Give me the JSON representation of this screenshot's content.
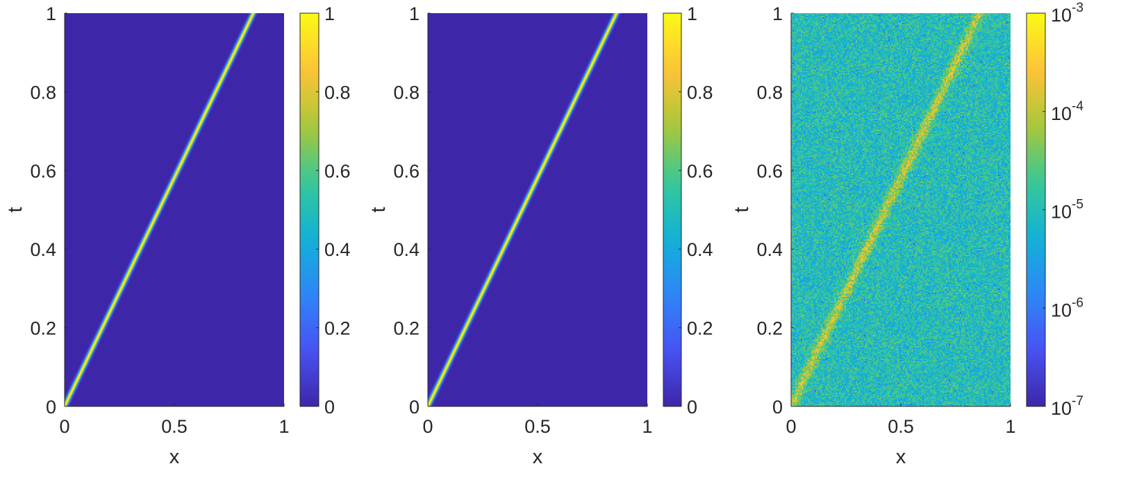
{
  "chart_data": [
    {
      "type": "heatmap",
      "description_id": "panel-1",
      "xlabel": "x",
      "ylabel": "t",
      "xlim": [
        0,
        1
      ],
      "ylim": [
        0,
        1
      ],
      "x_ticks": [
        "0",
        "0.5",
        "1"
      ],
      "y_ticks": [
        "0",
        "0.2",
        "0.4",
        "0.6",
        "0.8",
        "1"
      ],
      "colorbar": {
        "scale": "linear",
        "range": [
          0,
          1
        ],
        "ticks": [
          "0",
          "0.2",
          "0.4",
          "0.6",
          "0.8",
          "1"
        ]
      },
      "background_value": 0,
      "ridge": {
        "start": [
          0,
          0
        ],
        "end": [
          0.86,
          1
        ],
        "peak_value": 1
      }
    },
    {
      "type": "heatmap",
      "description_id": "panel-2",
      "xlabel": "x",
      "ylabel": "t",
      "xlim": [
        0,
        1
      ],
      "ylim": [
        0,
        1
      ],
      "x_ticks": [
        "0",
        "0.5",
        "1"
      ],
      "y_ticks": [
        "0",
        "0.2",
        "0.4",
        "0.6",
        "0.8",
        "1"
      ],
      "colorbar": {
        "scale": "linear",
        "range": [
          0,
          1
        ],
        "ticks": [
          "0",
          "0.2",
          "0.4",
          "0.6",
          "0.8",
          "1"
        ]
      },
      "background_value": 0,
      "ridge": {
        "start": [
          0,
          0
        ],
        "end": [
          0.86,
          1
        ],
        "peak_value": 1
      }
    },
    {
      "type": "heatmap",
      "description_id": "panel-3",
      "xlabel": "x",
      "ylabel": "t",
      "xlim": [
        0,
        1
      ],
      "ylim": [
        0,
        1
      ],
      "x_ticks": [
        "0",
        "0.5",
        "1"
      ],
      "y_ticks": [
        "0",
        "0.2",
        "0.4",
        "0.6",
        "0.8",
        "1"
      ],
      "colorbar": {
        "scale": "log",
        "range": [
          1e-07,
          0.001
        ],
        "ticks": [
          {
            "base": "10",
            "exp": "-7"
          },
          {
            "base": "10",
            "exp": "-6"
          },
          {
            "base": "10",
            "exp": "-5"
          },
          {
            "base": "10",
            "exp": "-4"
          },
          {
            "base": "10",
            "exp": "-3"
          }
        ]
      },
      "background_value": 1e-05,
      "ridge": {
        "start": [
          0,
          0
        ],
        "end": [
          0.86,
          1
        ],
        "peak_value": 0.0001
      }
    }
  ],
  "colors": {
    "parula_low": "#3e26a8",
    "parula_high": "#f9fb15"
  }
}
